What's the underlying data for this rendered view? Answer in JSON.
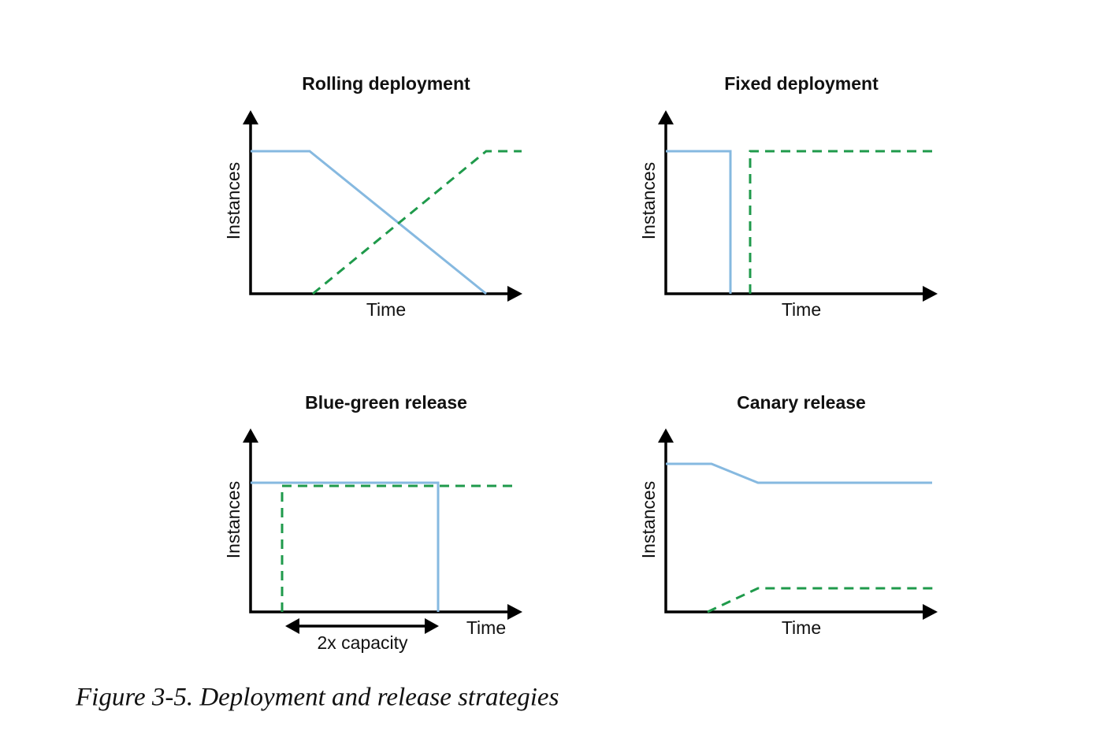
{
  "panels": [
    {
      "title": "Rolling deployment",
      "y_label": "Instances",
      "x_label": "Time"
    },
    {
      "title": "Fixed deployment",
      "y_label": "Instances",
      "x_label": "Time"
    },
    {
      "title": "Blue-green release",
      "y_label": "Instances",
      "x_label": "Time",
      "annotation": "2x capacity"
    },
    {
      "title": "Canary release",
      "y_label": "Instances",
      "x_label": "Time"
    }
  ],
  "caption": "Figure 3-5. Deployment and release strategies"
}
